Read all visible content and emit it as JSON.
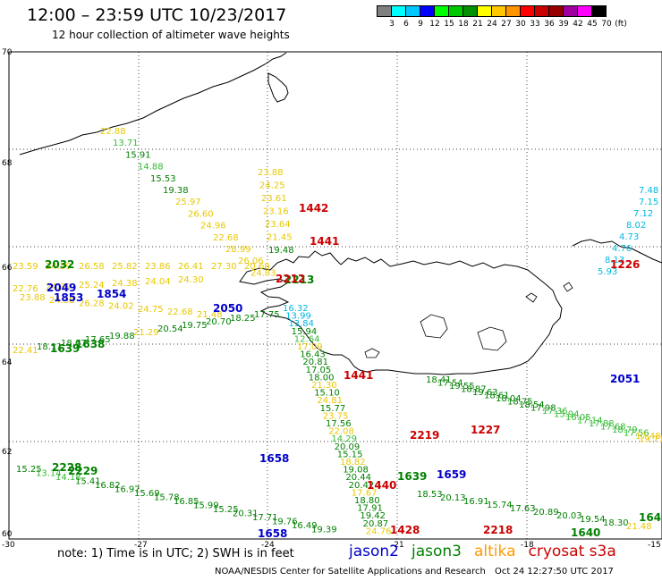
{
  "header": {
    "title": "12:00 – 23:59 UTC 10/23/2017",
    "subtitle": "12 hour collection of altimeter wave heights"
  },
  "colorbar": {
    "colors": [
      "#808080",
      "#00ffff",
      "#00c8ff",
      "#0000ff",
      "#00ff00",
      "#00c800",
      "#009000",
      "#ffff00",
      "#ffc800",
      "#ff9600",
      "#ff0000",
      "#c80000",
      "#960000",
      "#a000a0",
      "#ff00ff",
      "#000000"
    ],
    "labels": [
      "3",
      "6",
      "9",
      "12",
      "15",
      "18",
      "21",
      "24",
      "27",
      "30",
      "33",
      "36",
      "39",
      "42",
      "45",
      "70",
      "(ft)"
    ]
  },
  "axes": {
    "lat_labels": [
      "70",
      "68",
      "66",
      "64",
      "62",
      "60"
    ],
    "lon_labels": [
      "-30",
      "-27",
      "-24",
      "-21",
      "-18",
      "-15"
    ]
  },
  "colors": {
    "jason2": "#0000cc",
    "jason3": "#008000",
    "altika": "#ff9900",
    "cryosat": "#cc0000",
    "altika_obs": "#e8c800",
    "jason3_obs": "#33bb33",
    "cyan_obs": "#00b8e0"
  },
  "observations": {
    "altika_nw": [
      "22.88",
      "13.71",
      "15.91",
      "14.88",
      "15.53",
      "19.38",
      "25.97",
      "26.60",
      "24.96",
      "22.68",
      "28.99",
      "26.06",
      "24.83"
    ],
    "altika_mid": [
      "23.88",
      "24.25",
      "23.61",
      "23.16",
      "23.64",
      "21.45",
      "19.48"
    ],
    "west_row_a": [
      "23.59",
      "24.59",
      "26.58",
      "25.82",
      "23.86",
      "26.41",
      "27.30",
      "20.68"
    ],
    "west_row_b": [
      "22.76",
      "24.39",
      "25.24",
      "24.38",
      "24.04",
      "24.30"
    ],
    "west_row_c": [
      "23.88",
      "24.38",
      "26.28",
      "24.02",
      "24.75",
      "22.68",
      "21.48"
    ],
    "west_row_d": [
      "22.41",
      "18.11",
      "18.67",
      "17.65",
      "19.88",
      "21.29",
      "20.54",
      "19.75",
      "20.70",
      "18.25",
      "17.75"
    ],
    "mid_column": [
      "16.32",
      "13.99",
      "13.84",
      "15.94",
      "12.64",
      "17.09",
      "16.43",
      "20.81",
      "17.05",
      "18.00",
      "21.30",
      "15.10",
      "24.81",
      "15.77",
      "23.75",
      "17.56",
      "22.08",
      "14.29",
      "20.09",
      "15.15",
      "18.82",
      "19.08",
      "20.44",
      "20.42",
      "17.67",
      "18.80",
      "17.91",
      "19.42",
      "20.87",
      "24.76"
    ],
    "south_diag": [
      "18.41",
      "17.54",
      "19.55",
      "18.87",
      "19.63",
      "18.61",
      "18.04",
      "18.75",
      "18.54",
      "17.98",
      "17.36",
      "15.94",
      "16.05",
      "17.14",
      "17.88",
      "17.68",
      "18.79",
      "17.56",
      "17.48",
      "19.71"
    ],
    "south_lower": [
      "18.53",
      "20.13",
      "16.91",
      "15.74",
      "17.63",
      "20.89",
      "20.03",
      "19.54",
      "18.30",
      "21.48"
    ],
    "sw_diag": [
      "15.25",
      "13.14",
      "14.18",
      "15.41",
      "16.82",
      "16.97",
      "15.69",
      "15.78",
      "16.85",
      "15.99",
      "15.25",
      "20.31",
      "17.71",
      "19.76",
      "16.49",
      "19.39"
    ],
    "east_cyan": [
      "7.48",
      "7.15",
      "7.12",
      "8.02",
      "4.73",
      "4.76",
      "8.13",
      "5.93"
    ]
  },
  "passes": [
    {
      "label": "2032",
      "sat": "jason3"
    },
    {
      "label": "2049",
      "sat": "jason2"
    },
    {
      "label": "1854",
      "sat": "jason2"
    },
    {
      "label": "1853",
      "sat": "jason2"
    },
    {
      "label": "1442",
      "sat": "cryosat"
    },
    {
      "label": "1441",
      "sat": "cryosat"
    },
    {
      "label": "2050",
      "sat": "jason2"
    },
    {
      "label": "2213",
      "sat": "jason3"
    },
    {
      "label": "2212",
      "sat": "cryosat"
    },
    {
      "label": "1639",
      "sat": "jason3"
    },
    {
      "label": "1638",
      "sat": "jason3"
    },
    {
      "label": "1441",
      "sat": "cryosat"
    },
    {
      "label": "1658",
      "sat": "jason2"
    },
    {
      "label": "1226",
      "sat": "cryosat"
    },
    {
      "label": "2051",
      "sat": "jason2"
    },
    {
      "label": "1227",
      "sat": "cryosat"
    },
    {
      "label": "2219",
      "sat": "cryosat"
    },
    {
      "label": "1659",
      "sat": "jason2"
    },
    {
      "label": "2229",
      "sat": "jason3"
    },
    {
      "label": "2228",
      "sat": "jason3"
    },
    {
      "label": "1440",
      "sat": "cryosat"
    },
    {
      "label": "1639",
      "sat": "jason3"
    },
    {
      "label": "1658",
      "sat": "jason2"
    },
    {
      "label": "1428",
      "sat": "cryosat"
    },
    {
      "label": "2218",
      "sat": "cryosat"
    },
    {
      "label": "1640",
      "sat": "jason3"
    },
    {
      "label": "164",
      "sat": "jason3"
    }
  ],
  "footer": {
    "note": "note:  1) Time is in UTC;  2) SWH is in feet",
    "legend": [
      {
        "label": "jason2",
        "sat": "jason2"
      },
      {
        "label": "jason3",
        "sat": "jason3"
      },
      {
        "label": "altika",
        "sat": "altika"
      },
      {
        "label": "cryosat s3a",
        "sat": "cryosat"
      }
    ],
    "credit": "NOAA/NESDIS Center for Satellite Applications and Research",
    "timestamp": "Oct 24 12:27:50 UTC 2017"
  }
}
